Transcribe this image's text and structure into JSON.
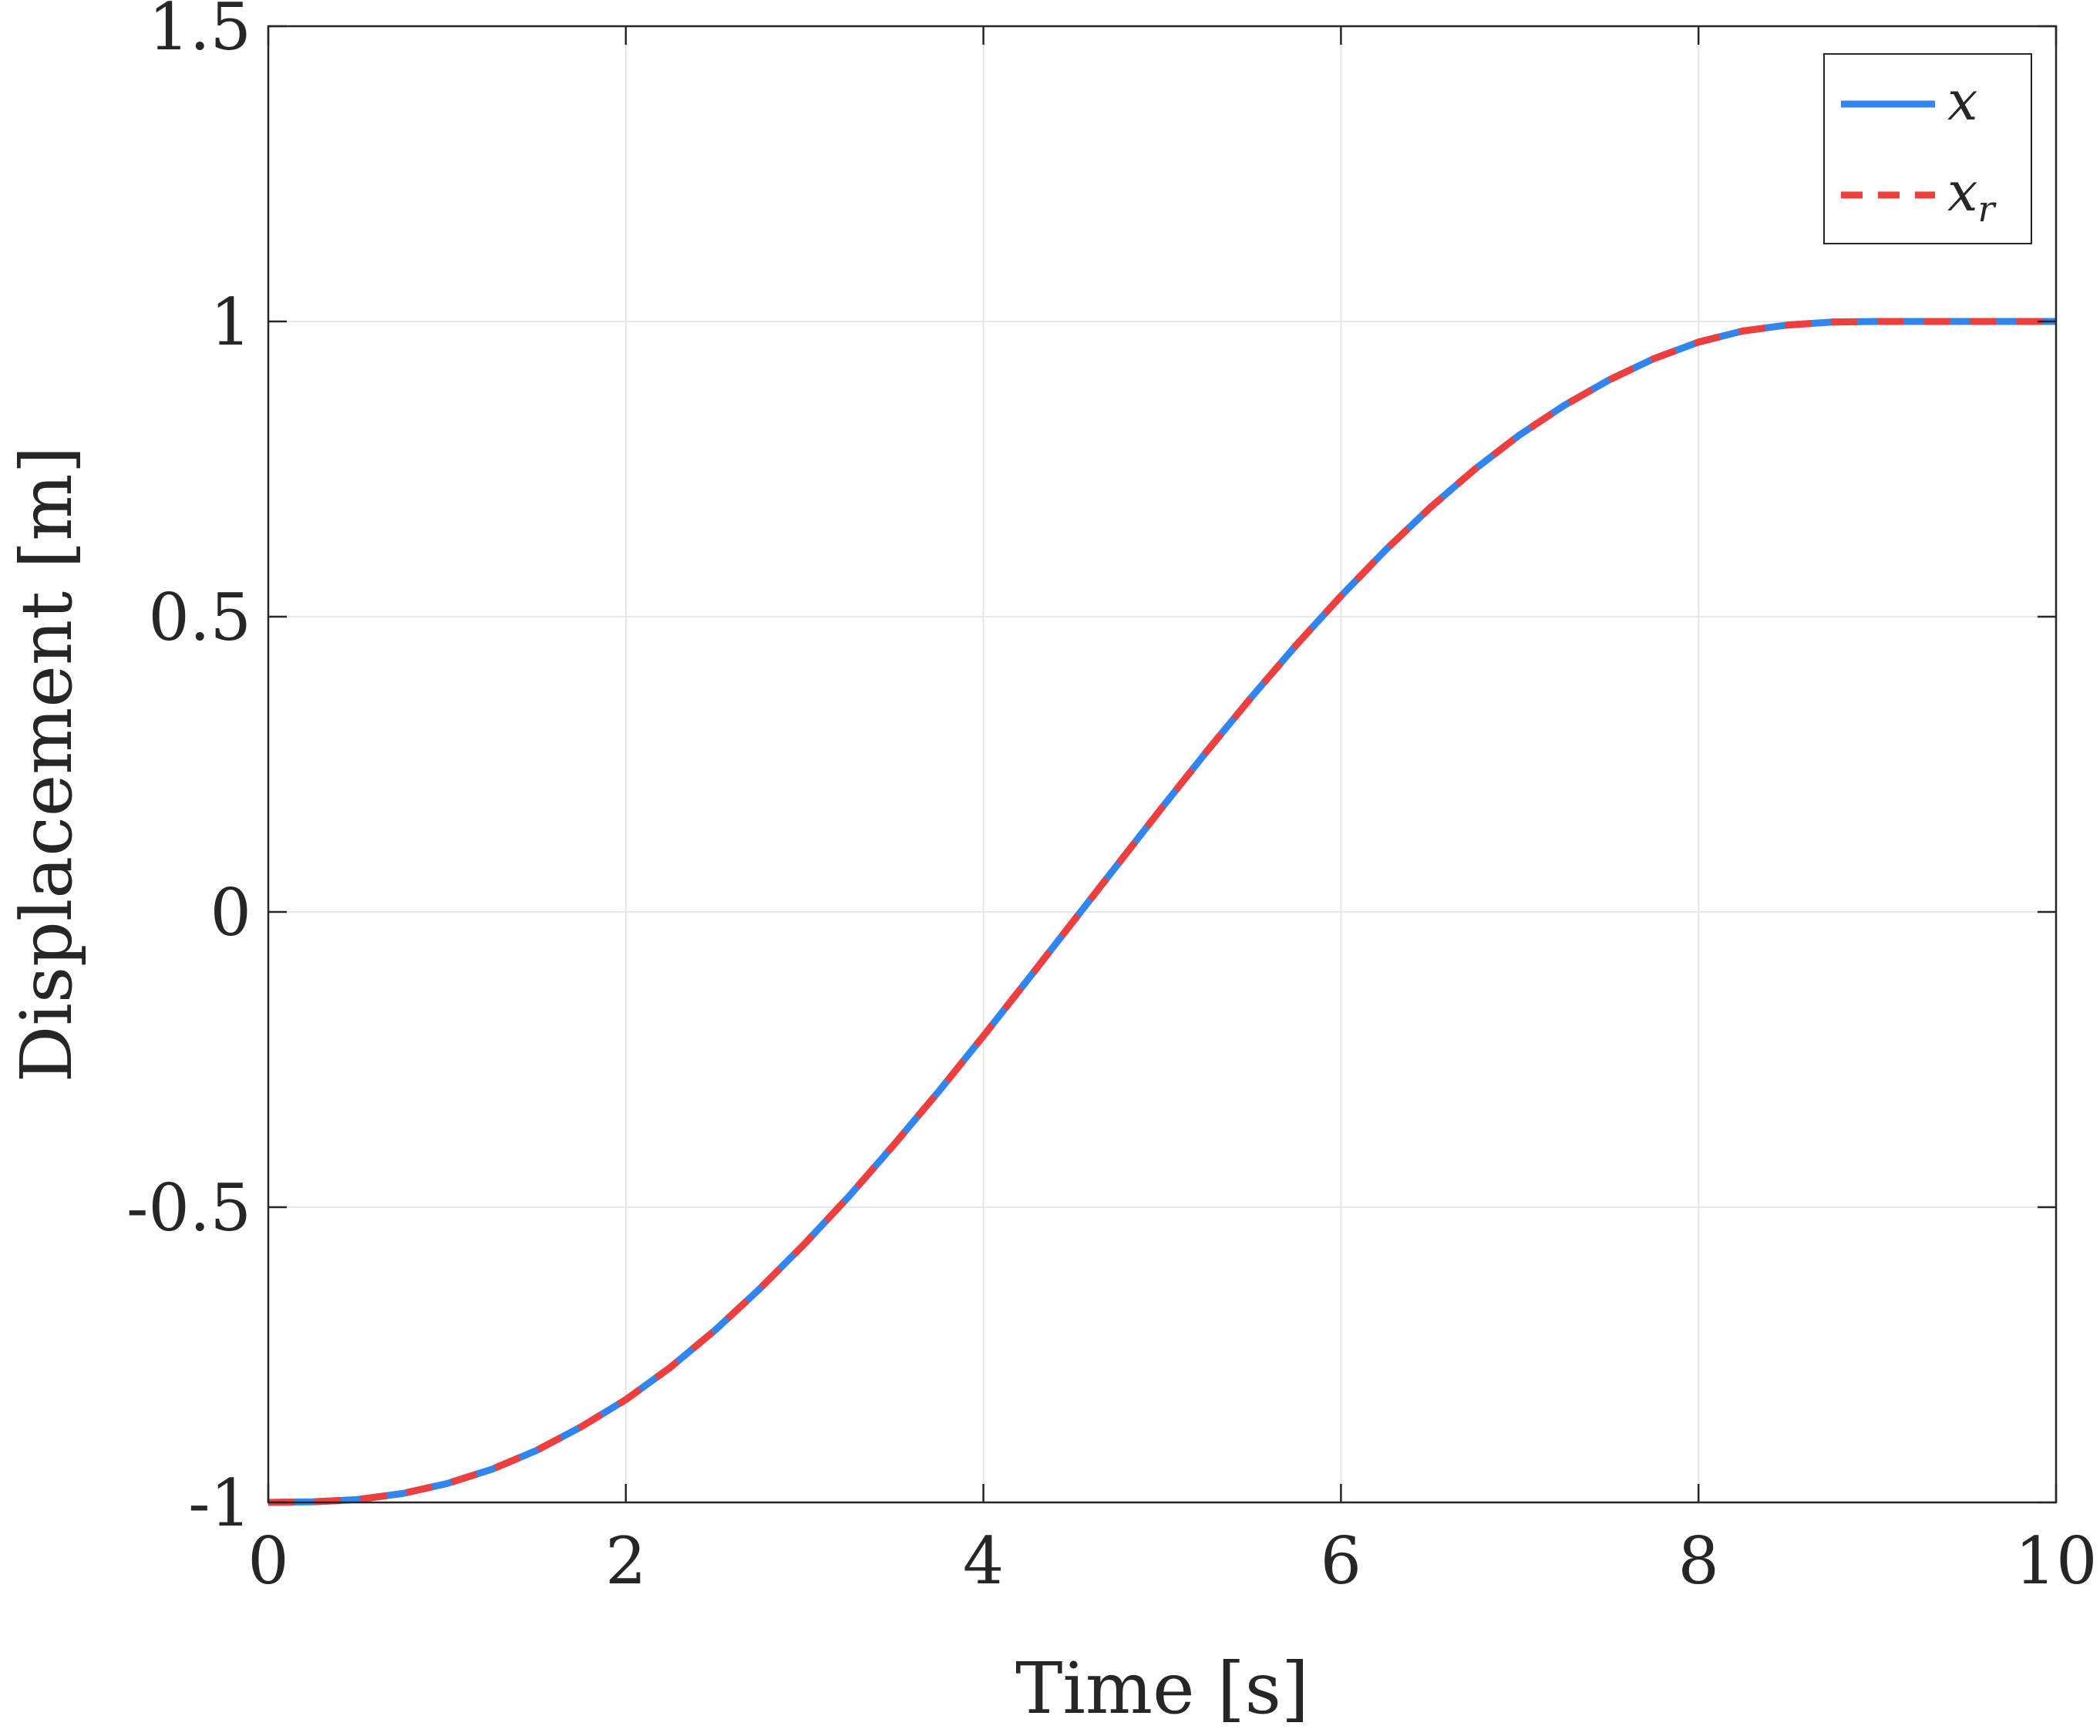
{
  "chart_data": {
    "type": "line",
    "title": "",
    "xlabel": "Time [s]",
    "ylabel": "Displacement [m]",
    "xlim": [
      0,
      10
    ],
    "ylim": [
      -1,
      1.5
    ],
    "xticks": [
      0,
      2,
      4,
      6,
      8,
      10
    ],
    "xtick_labels": [
      "0",
      "2",
      "4",
      "6",
      "8",
      "10"
    ],
    "yticks": [
      -1,
      -0.5,
      0,
      0.5,
      1,
      1.5
    ],
    "ytick_labels": [
      "-1",
      "-0.5",
      "0",
      "0.5",
      "1",
      "1.5"
    ],
    "grid": true,
    "legend_position": "top-right",
    "legend": [
      {
        "symbol": "x",
        "subscript": "",
        "color": "#3385ee",
        "style": "solid"
      },
      {
        "symbol": "x",
        "subscript": "r",
        "color": "#ee3f3f",
        "style": "dashed"
      }
    ],
    "series": [
      {
        "x": [
          0,
          0.25,
          0.5,
          0.75,
          1,
          1.25,
          1.5,
          1.75,
          2,
          2.25,
          2.5,
          2.75,
          3,
          3.25,
          3.5,
          3.75,
          4,
          4.25,
          4.5,
          4.75,
          5,
          5.25,
          5.5,
          5.75,
          6,
          6.25,
          6.5,
          6.75,
          7,
          7.25,
          7.5,
          7.75,
          8,
          8.25,
          8.5,
          8.75,
          9,
          9.25,
          9.5,
          9.75,
          10
        ],
        "y": [
          -1,
          -0.999,
          -0.995,
          -0.985,
          -0.968,
          -0.944,
          -0.912,
          -0.872,
          -0.826,
          -0.771,
          -0.708,
          -0.638,
          -0.562,
          -0.481,
          -0.394,
          -0.304,
          -0.21,
          -0.114,
          -0.017,
          0.08,
          0.177,
          0.272,
          0.364,
          0.452,
          0.535,
          0.613,
          0.685,
          0.75,
          0.808,
          0.858,
          0.901,
          0.937,
          0.965,
          0.984,
          0.994,
          0.999,
          1,
          1,
          1,
          1,
          1
        ]
      },
      {
        "x": [
          0,
          0.25,
          0.5,
          0.75,
          1,
          1.25,
          1.5,
          1.75,
          2,
          2.25,
          2.5,
          2.75,
          3,
          3.25,
          3.5,
          3.75,
          4,
          4.25,
          4.5,
          4.75,
          5,
          5.25,
          5.5,
          5.75,
          6,
          6.25,
          6.5,
          6.75,
          7,
          7.25,
          7.5,
          7.75,
          8,
          8.25,
          8.5,
          8.75,
          9,
          9.25,
          9.5,
          9.75,
          10
        ],
        "y": [
          -1,
          -0.999,
          -0.995,
          -0.985,
          -0.968,
          -0.944,
          -0.912,
          -0.872,
          -0.826,
          -0.771,
          -0.708,
          -0.638,
          -0.562,
          -0.481,
          -0.394,
          -0.304,
          -0.21,
          -0.114,
          -0.017,
          0.08,
          0.177,
          0.272,
          0.364,
          0.452,
          0.535,
          0.613,
          0.685,
          0.75,
          0.808,
          0.858,
          0.901,
          0.937,
          0.965,
          0.984,
          0.994,
          0.999,
          1,
          1,
          1,
          1,
          1
        ]
      }
    ]
  }
}
